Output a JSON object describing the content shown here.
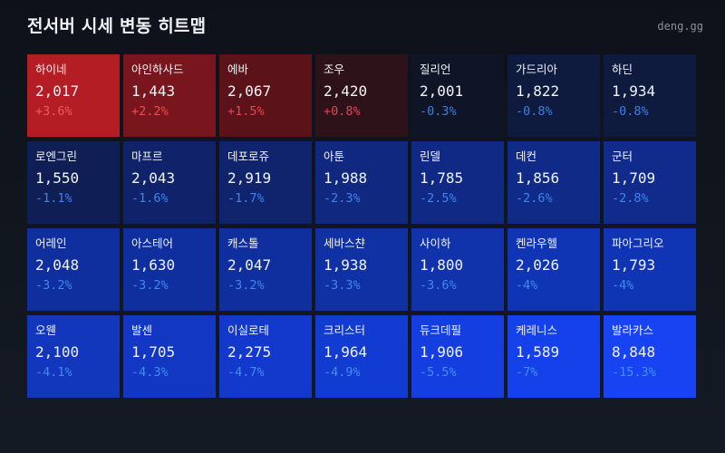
{
  "header": {
    "title": "전서버 시세 변동 히트맵",
    "brand": "deng.gg"
  },
  "colors": {
    "background": "#10141c",
    "up_text": "#f0505a",
    "down_text": "#3d86f0"
  },
  "tiles": [
    {
      "name": "하이네",
      "price": "2,017",
      "change": "+3.6%",
      "bg": "#b51d25",
      "fg": "#f0585f"
    },
    {
      "name": "아인하사드",
      "price": "1,443",
      "change": "+2.2%",
      "bg": "#78151d",
      "fg": "#f04a55"
    },
    {
      "name": "에바",
      "price": "2,067",
      "change": "+1.5%",
      "bg": "#5b1319",
      "fg": "#ec4450"
    },
    {
      "name": "조우",
      "price": "2,420",
      "change": "+0.8%",
      "bg": "#2e1219",
      "fg": "#e8424e"
    },
    {
      "name": "질리언",
      "price": "2,001",
      "change": "-0.3%",
      "bg": "#0f1526",
      "fg": "#3a7fe6"
    },
    {
      "name": "가드리아",
      "price": "1,822",
      "change": "-0.8%",
      "bg": "#0e1a3e",
      "fg": "#3a80ea"
    },
    {
      "name": "하딘",
      "price": "1,934",
      "change": "-0.8%",
      "bg": "#0e1a3e",
      "fg": "#3a80ea"
    },
    {
      "name": "로엔그린",
      "price": "1,550",
      "change": "-1.1%",
      "bg": "#0f1f55",
      "fg": "#3a82ee"
    },
    {
      "name": "마프르",
      "price": "2,043",
      "change": "-1.6%",
      "bg": "#10236a",
      "fg": "#3a84f0"
    },
    {
      "name": "데포로쥬",
      "price": "2,919",
      "change": "-1.7%",
      "bg": "#10246e",
      "fg": "#3a84f0"
    },
    {
      "name": "아툰",
      "price": "1,988",
      "change": "-2.3%",
      "bg": "#102880",
      "fg": "#3a85f0"
    },
    {
      "name": "린델",
      "price": "1,785",
      "change": "-2.5%",
      "bg": "#102984",
      "fg": "#3a86f0"
    },
    {
      "name": "데컨",
      "price": "1,856",
      "change": "-2.6%",
      "bg": "#102a88",
      "fg": "#3a86f0"
    },
    {
      "name": "군터",
      "price": "1,709",
      "change": "-2.8%",
      "bg": "#102b8c",
      "fg": "#3a87f0"
    },
    {
      "name": "어레인",
      "price": "2,048",
      "change": "-3.2%",
      "bg": "#102f9e",
      "fg": "#3c88f0"
    },
    {
      "name": "아스테어",
      "price": "1,630",
      "change": "-3.2%",
      "bg": "#102f9e",
      "fg": "#3c88f0"
    },
    {
      "name": "캐스톨",
      "price": "2,047",
      "change": "-3.2%",
      "bg": "#102f9e",
      "fg": "#3c88f0"
    },
    {
      "name": "세바스챤",
      "price": "1,938",
      "change": "-3.3%",
      "bg": "#1031a4",
      "fg": "#3d88f0"
    },
    {
      "name": "사이하",
      "price": "1,800",
      "change": "-3.6%",
      "bg": "#1033ac",
      "fg": "#3d89f0"
    },
    {
      "name": "켄라우헬",
      "price": "2,026",
      "change": "-4%",
      "bg": "#1035b4",
      "fg": "#3e8af0"
    },
    {
      "name": "파아그리오",
      "price": "1,793",
      "change": "-4%",
      "bg": "#1035b4",
      "fg": "#3e8af0"
    },
    {
      "name": "오웬",
      "price": "2,100",
      "change": "-4.1%",
      "bg": "#1236bc",
      "fg": "#3f8bf0"
    },
    {
      "name": "발센",
      "price": "1,705",
      "change": "-4.3%",
      "bg": "#1237c2",
      "fg": "#3f8cf0"
    },
    {
      "name": "이실로테",
      "price": "2,275",
      "change": "-4.7%",
      "bg": "#1239cc",
      "fg": "#408df0"
    },
    {
      "name": "크리스터",
      "price": "1,964",
      "change": "-4.9%",
      "bg": "#123bd2",
      "fg": "#418ef0"
    },
    {
      "name": "듀크데필",
      "price": "1,906",
      "change": "-5.5%",
      "bg": "#143ee0",
      "fg": "#4290f2"
    },
    {
      "name": "케레니스",
      "price": "1,589",
      "change": "-7%",
      "bg": "#1541ea",
      "fg": "#4391f2"
    },
    {
      "name": "발라카스",
      "price": "8,848",
      "change": "-15.3%",
      "bg": "#1743f2",
      "fg": "#4492f4"
    }
  ],
  "chart_data": {
    "type": "heatmap",
    "title": "전서버 시세 변동 히트맵",
    "layout": {
      "rows": 4,
      "cols": 7
    },
    "categories": [
      "하이네",
      "아인하사드",
      "에바",
      "조우",
      "질리언",
      "가드리아",
      "하딘",
      "로엔그린",
      "마프르",
      "데포로쥬",
      "아툰",
      "린델",
      "데컨",
      "군터",
      "어레인",
      "아스테어",
      "캐스톨",
      "세바스챤",
      "사이하",
      "켄라우헬",
      "파아그리오",
      "오웬",
      "발센",
      "이실로테",
      "크리스터",
      "듀크데필",
      "케레니스",
      "발라카스"
    ],
    "series": [
      {
        "name": "price",
        "values": [
          2017,
          1443,
          2067,
          2420,
          2001,
          1822,
          1934,
          1550,
          2043,
          2919,
          1988,
          1785,
          1856,
          1709,
          2048,
          1630,
          2047,
          1938,
          1800,
          2026,
          1793,
          2100,
          1705,
          2275,
          1964,
          1906,
          1589,
          8848
        ]
      },
      {
        "name": "change_pct",
        "values": [
          3.6,
          2.2,
          1.5,
          0.8,
          -0.3,
          -0.8,
          -0.8,
          -1.1,
          -1.6,
          -1.7,
          -2.3,
          -2.5,
          -2.6,
          -2.8,
          -3.2,
          -3.2,
          -3.2,
          -3.3,
          -3.6,
          -4,
          -4,
          -4.1,
          -4.3,
          -4.7,
          -4.9,
          -5.5,
          -7,
          -15.3
        ]
      }
    ],
    "color_scale": {
      "positive": "red",
      "negative": "blue"
    },
    "legend": "none"
  }
}
